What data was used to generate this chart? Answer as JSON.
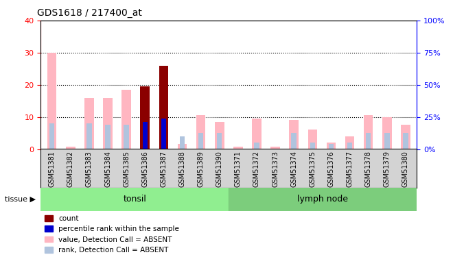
{
  "title": "GDS1618 / 217400_at",
  "samples": [
    "GSM51381",
    "GSM51382",
    "GSM51383",
    "GSM51384",
    "GSM51385",
    "GSM51386",
    "GSM51387",
    "GSM51388",
    "GSM51389",
    "GSM51390",
    "GSM51371",
    "GSM51372",
    "GSM51373",
    "GSM51374",
    "GSM51375",
    "GSM51376",
    "GSM51377",
    "GSM51378",
    "GSM51379",
    "GSM51380"
  ],
  "value_absent": [
    30,
    0.8,
    16,
    16,
    18.5,
    19.5,
    9.5,
    1.5,
    10.5,
    8.5,
    0.8,
    9.5,
    0.8,
    9,
    6,
    2,
    4,
    10.5,
    10,
    7.5
  ],
  "rank_absent": [
    8,
    0,
    8,
    7.5,
    7.5,
    3,
    0,
    4,
    5,
    5,
    0,
    2,
    0,
    5,
    2,
    1.5,
    2,
    5,
    5,
    5
  ],
  "count_present": [
    0,
    0,
    0,
    0,
    0,
    19.5,
    26,
    0,
    0,
    0,
    0,
    0,
    0,
    0,
    0,
    0,
    0,
    0,
    0,
    0
  ],
  "rank_present": [
    0,
    0,
    0,
    0,
    0,
    8.5,
    9.5,
    0,
    0,
    0,
    0,
    0,
    0,
    0,
    0,
    0,
    0,
    0,
    0,
    0
  ],
  "tonsil_count": 10,
  "lymph_count": 10,
  "ylim_left": [
    0,
    40
  ],
  "ylim_right": [
    0,
    100
  ],
  "yticks_left": [
    0,
    10,
    20,
    30,
    40
  ],
  "yticks_right": [
    0,
    25,
    50,
    75,
    100
  ],
  "color_count": "#8B0000",
  "color_rank_present": "#0000CD",
  "color_value_absent": "#FFB6C1",
  "color_rank_absent": "#B0C4DE",
  "color_tonsil": "#90EE90",
  "color_lymph": "#7CCD7C",
  "color_bg_ticks": "#D3D3D3",
  "bar_width": 0.5,
  "figsize": [
    6.6,
    3.75
  ],
  "dpi": 100
}
